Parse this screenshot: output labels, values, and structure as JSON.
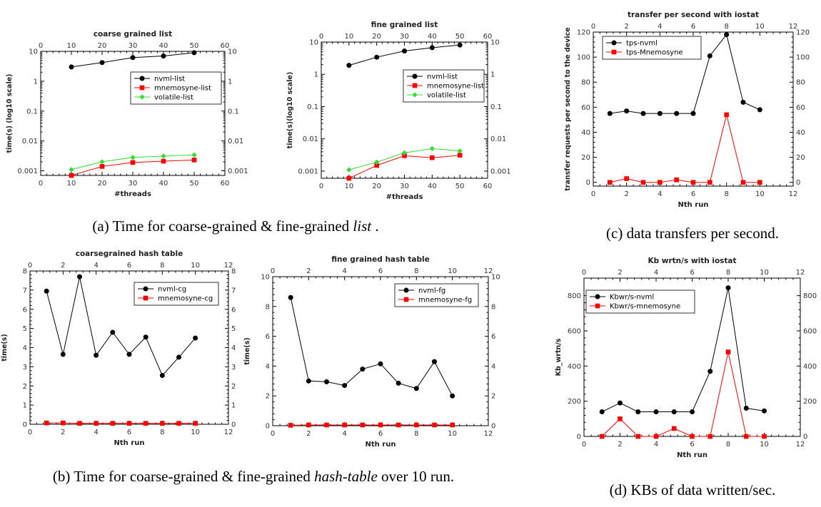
{
  "colors": {
    "black": "#000000",
    "red": "#ff0000",
    "green": "#33dd33"
  },
  "captions": {
    "a": {
      "pre": "(a) Time for coarse-grained & fine-grained ",
      "em": "list",
      "post": " ."
    },
    "b": {
      "pre": "(b) Time for coarse-grained & fine-grained ",
      "em": "hash-table",
      "post": " over 10 run."
    },
    "c": {
      "text": "(c) data transfers per second."
    },
    "d": {
      "text": "(d) KBs of data written/sec."
    }
  },
  "chart_data": [
    {
      "id": "coarse-list",
      "type": "line",
      "title": "coarse grained list",
      "xlabel": "#threads",
      "ylabel": "time(s) (log10 scale)",
      "xlim": [
        0,
        60
      ],
      "xticks": [
        0,
        10,
        20,
        30,
        40,
        50,
        60
      ],
      "ylog": true,
      "ylim": [
        0.0007,
        10
      ],
      "yticks": [
        0.001,
        0.01,
        0.1,
        1,
        10
      ],
      "yticklabels": [
        "0.001",
        "0.01",
        "0.1",
        "1",
        "10"
      ],
      "legend": "right-middle",
      "series": [
        {
          "name": "nvml-list",
          "color": "#000000",
          "marker": "circle",
          "x": [
            10,
            20,
            30,
            40,
            50
          ],
          "y": [
            3,
            4.2,
            6.2,
            7,
            9
          ]
        },
        {
          "name": "mnemosyne-list",
          "color": "#ff0000",
          "marker": "square",
          "x": [
            10,
            20,
            30,
            40,
            50
          ],
          "y": [
            0.0007,
            0.0014,
            0.0019,
            0.0021,
            0.0023
          ]
        },
        {
          "name": "volatile-list",
          "color": "#33dd33",
          "marker": "diamond",
          "x": [
            10,
            20,
            30,
            40,
            50
          ],
          "y": [
            0.0011,
            0.002,
            0.0028,
            0.0031,
            0.0034
          ]
        }
      ]
    },
    {
      "id": "fine-list",
      "type": "line",
      "title": "fine grained list",
      "xlabel": "#threads",
      "ylabel": "time(s)(log10 scale)",
      "xlim": [
        0,
        60
      ],
      "xticks": [
        0,
        10,
        20,
        30,
        40,
        50,
        60
      ],
      "ylog": true,
      "ylim": [
        0.0006,
        10
      ],
      "yticks": [
        0.001,
        0.01,
        0.1,
        1,
        10
      ],
      "yticklabels": [
        "0.001",
        "0.01",
        "0.1",
        "1",
        "10"
      ],
      "legend": "right-middle",
      "series": [
        {
          "name": "nvml-list",
          "color": "#000000",
          "marker": "circle",
          "x": [
            10,
            20,
            30,
            40,
            50
          ],
          "y": [
            1.9,
            3.4,
            5.3,
            6.7,
            8.1
          ]
        },
        {
          "name": "mnemosyne-list",
          "color": "#ff0000",
          "marker": "square",
          "x": [
            10,
            20,
            30,
            40,
            50
          ],
          "y": [
            0.0006,
            0.0015,
            0.003,
            0.0026,
            0.0031
          ]
        },
        {
          "name": "volatile-list",
          "color": "#33dd33",
          "marker": "diamond",
          "x": [
            10,
            20,
            30,
            40,
            50
          ],
          "y": [
            0.0011,
            0.0019,
            0.0037,
            0.005,
            0.0042
          ]
        }
      ]
    },
    {
      "id": "tps",
      "type": "line",
      "title": "transfer per second with iostat",
      "xlabel": "Nth run",
      "ylabel": "transfer requests per second to the device",
      "xlim": [
        0,
        12
      ],
      "xticks": [
        0,
        2,
        4,
        6,
        8,
        10,
        12
      ],
      "ylim": [
        -3,
        120
      ],
      "yticks": [
        0,
        20,
        40,
        60,
        80,
        100,
        120
      ],
      "legend": "top-left",
      "series": [
        {
          "name": "tps-nvml",
          "color": "#000000",
          "marker": "circle",
          "x": [
            1,
            2,
            3,
            4,
            5,
            6,
            7,
            8,
            9,
            10
          ],
          "y": [
            55,
            57,
            55,
            55,
            55,
            55,
            101,
            118,
            64,
            58
          ]
        },
        {
          "name": "tps-Mnemosyne",
          "color": "#ff0000",
          "marker": "square",
          "x": [
            1,
            2,
            3,
            4,
            5,
            6,
            7,
            8,
            9,
            10
          ],
          "y": [
            0,
            3,
            0,
            0,
            2,
            0,
            0,
            54,
            0,
            0
          ]
        }
      ]
    },
    {
      "id": "coarse-hash",
      "type": "line",
      "title": "coarsegrained hash table",
      "xlabel": "Nth run",
      "ylabel": "time(s)",
      "xlim": [
        0,
        12
      ],
      "xticks": [
        0,
        2,
        4,
        6,
        8,
        10,
        12
      ],
      "ylim": [
        0,
        8
      ],
      "yticks": [
        0,
        1,
        2,
        3,
        4,
        5,
        6,
        7,
        8
      ],
      "legend": "top-right",
      "series": [
        {
          "name": "nvml-cg",
          "color": "#000000",
          "marker": "circle",
          "x": [
            1,
            2,
            3,
            4,
            5,
            6,
            7,
            8,
            9,
            10
          ],
          "y": [
            6.95,
            3.65,
            7.7,
            3.6,
            4.8,
            3.65,
            4.55,
            2.55,
            3.5,
            4.5
          ]
        },
        {
          "name": "mnemosyne-cg",
          "color": "#ff0000",
          "marker": "square",
          "x": [
            1,
            2,
            3,
            4,
            5,
            6,
            7,
            8,
            9,
            10
          ],
          "y": [
            0.07,
            0.07,
            0.05,
            0.05,
            0.05,
            0.05,
            0.05,
            0.05,
            0.05,
            0.05
          ]
        }
      ]
    },
    {
      "id": "fine-hash",
      "type": "line",
      "title": "fine grained hash table",
      "xlabel": "Nth run",
      "ylabel": "time(s)",
      "xlim": [
        0,
        12
      ],
      "xticks": [
        0,
        2,
        4,
        6,
        8,
        10,
        12
      ],
      "ylim": [
        0,
        10
      ],
      "yticks": [
        0,
        2,
        4,
        6,
        8,
        10
      ],
      "legend": "top-right",
      "series": [
        {
          "name": "nvml-fg",
          "color": "#000000",
          "marker": "circle",
          "x": [
            1,
            2,
            3,
            4,
            5,
            6,
            7,
            8,
            9,
            10
          ],
          "y": [
            8.6,
            3.0,
            2.95,
            2.7,
            3.8,
            4.15,
            2.85,
            2.5,
            4.3,
            2.0
          ]
        },
        {
          "name": "mnemosyne-fg",
          "color": "#ff0000",
          "marker": "square",
          "x": [
            1,
            2,
            3,
            4,
            5,
            6,
            7,
            8,
            9,
            10
          ],
          "y": [
            0.03,
            0.05,
            0.05,
            0.05,
            0.05,
            0.05,
            0.05,
            0.05,
            0.05,
            0.05
          ]
        }
      ]
    },
    {
      "id": "kbwrtn",
      "type": "line",
      "title": "Kb wrtn/s with iostat",
      "xlabel": "Nth run",
      "ylabel": "Kb_wrtn/s",
      "xlim": [
        0,
        12
      ],
      "xticks": [
        0,
        2,
        4,
        6,
        8,
        10,
        12
      ],
      "ylim": [
        0,
        900
      ],
      "yticks": [
        0,
        200,
        400,
        600,
        800
      ],
      "legend": "top-left",
      "series": [
        {
          "name": "Kbwr/s-nvml",
          "color": "#000000",
          "marker": "circle",
          "x": [
            1,
            2,
            3,
            4,
            5,
            6,
            7,
            8,
            9,
            10
          ],
          "y": [
            140,
            190,
            140,
            140,
            140,
            140,
            370,
            845,
            160,
            145
          ]
        },
        {
          "name": "Kbwr/s-mnemosyne",
          "color": "#ff0000",
          "marker": "square",
          "x": [
            1,
            2,
            3,
            4,
            5,
            6,
            7,
            8,
            9,
            10
          ],
          "y": [
            0,
            100,
            0,
            0,
            45,
            0,
            0,
            480,
            0,
            0
          ]
        }
      ]
    }
  ]
}
